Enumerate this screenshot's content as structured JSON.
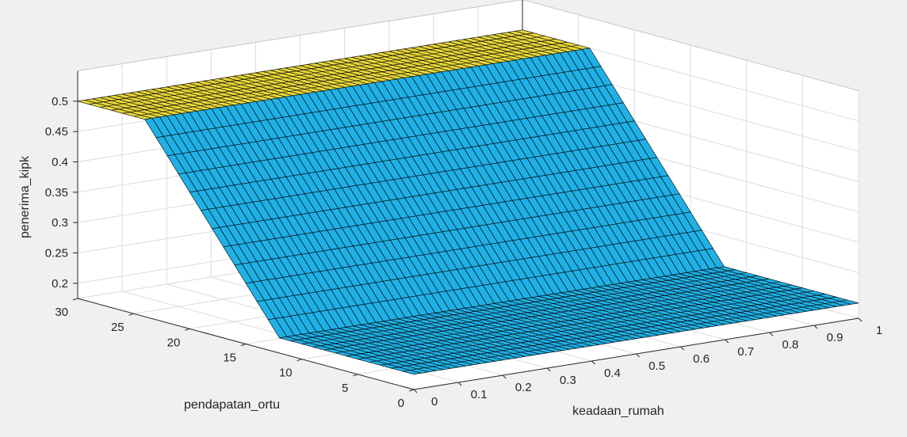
{
  "chart_data": {
    "type": "surface",
    "title": "",
    "xlabel": "keadaan_rumah",
    "ylabel": "pendapatan_ortu",
    "zlabel": "penerima_kipk",
    "xlim": [
      0,
      1
    ],
    "ylim": [
      0,
      30
    ],
    "zlim": [
      0.175,
      0.5
    ],
    "x_ticks": [
      "0",
      "0.1",
      "0.2",
      "0.3",
      "0.4",
      "0.5",
      "0.6",
      "0.7",
      "0.8",
      "0.9",
      "1"
    ],
    "y_ticks": [
      "0",
      "5",
      "10",
      "15",
      "20",
      "25",
      "30"
    ],
    "z_ticks": [
      "0.2",
      "0.25",
      "0.3",
      "0.35",
      "0.4",
      "0.45",
      "0.5"
    ],
    "grid": true,
    "surface_regions": [
      {
        "pendapatan_ortu_range": [
          0,
          12
        ],
        "penerima_kipk": 0.2,
        "color": "#1fb1e6"
      },
      {
        "pendapatan_ortu_range": [
          12,
          24
        ],
        "penerima_kipk": "linear 0.2 to 0.5",
        "color": "#1fb1e6"
      },
      {
        "pendapatan_ortu_range": [
          24,
          30
        ],
        "penerima_kipk": 0.5,
        "color": "#e8d83a"
      }
    ]
  },
  "colors": {
    "background": "#f0f0f0",
    "axes_face": "#ffffff",
    "grid": "#dcdcdc",
    "axis_line": "#262626",
    "surface_low": "#1fb1e6",
    "surface_high": "#e8d83a",
    "mesh": "#000000"
  }
}
